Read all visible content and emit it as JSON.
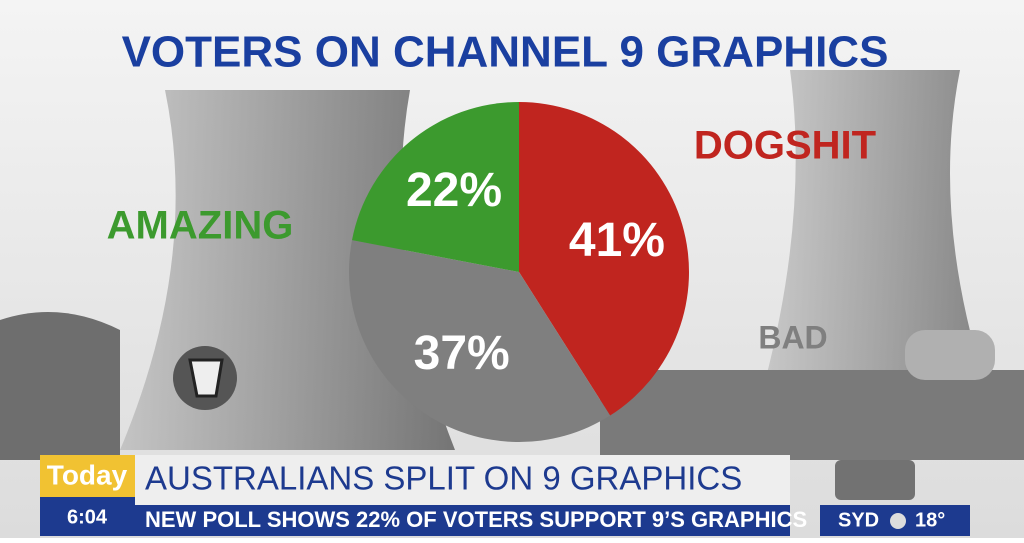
{
  "chart_data": {
    "type": "pie",
    "title": "VOTERS ON CHANNEL 9 GRAPHICS",
    "categories": [
      "DOGSHIT",
      "BAD",
      "AMAZING"
    ],
    "values": [
      41,
      37,
      22
    ],
    "value_labels": [
      "41%",
      "37%",
      "22%"
    ],
    "colors": [
      "#c0251f",
      "#7f7f7f",
      "#3c9a2e"
    ]
  },
  "broadcast": {
    "show": "Today",
    "time": "6:04",
    "headline": "AUSTRALIANS SPLIT ON 9 GRAPHICS",
    "ticker": "NEW POLL SHOWS 22% OF VOTERS SUPPORT 9’S GRAPHICS",
    "location": "SYD",
    "temperature": "18°"
  }
}
